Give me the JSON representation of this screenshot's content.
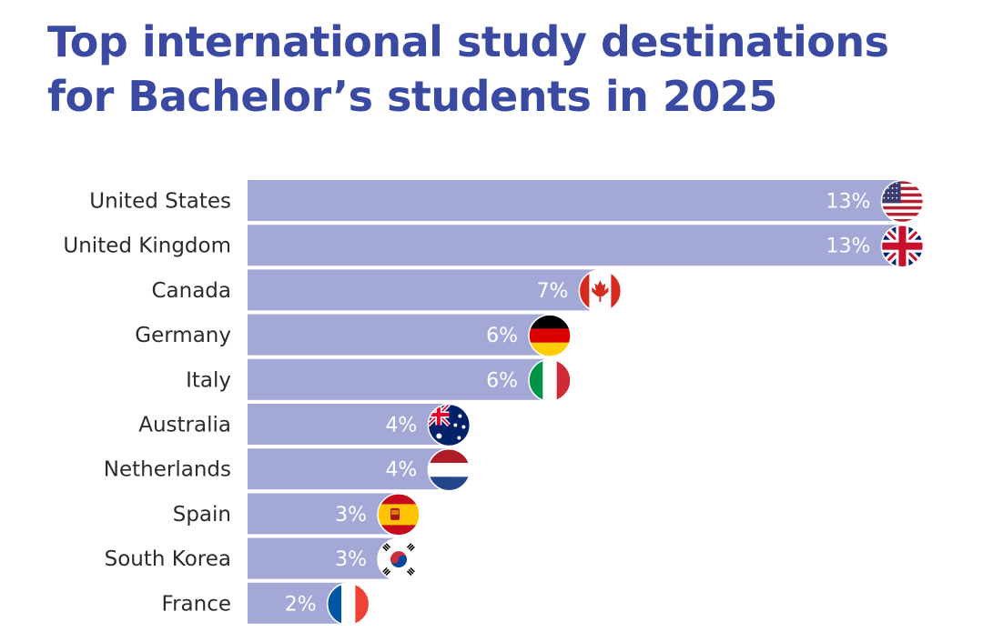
{
  "colors": {
    "title": "#3a4aa3",
    "bar": "#a3a8d7",
    "label": "#2b2b2b",
    "value": "#ffffff"
  },
  "chart_data": {
    "type": "bar",
    "orientation": "horizontal",
    "title": "Top international study destinations for Bachelor’s students in 2025",
    "xlabel": "",
    "ylabel": "",
    "unit": "%",
    "xlim": [
      0,
      13.3
    ],
    "grid": false,
    "legend": "none",
    "categories": [
      "United States",
      "United Kingdom",
      "Canada",
      "Germany",
      "Italy",
      "Australia",
      "Netherlands",
      "Spain",
      "South Korea",
      "France"
    ],
    "values": [
      13,
      13,
      7,
      6,
      6,
      4,
      4,
      3,
      3,
      2
    ],
    "labels": [
      "13%",
      "13%",
      "7%",
      "6%",
      "6%",
      "4%",
      "4%",
      "3%",
      "3%",
      "2%"
    ],
    "end_markers": [
      "us-flag-icon",
      "uk-flag-icon",
      "canada-flag-icon",
      "germany-flag-icon",
      "italy-flag-icon",
      "australia-flag-icon",
      "netherlands-flag-icon",
      "spain-flag-icon",
      "south-korea-flag-icon",
      "france-flag-icon"
    ]
  }
}
